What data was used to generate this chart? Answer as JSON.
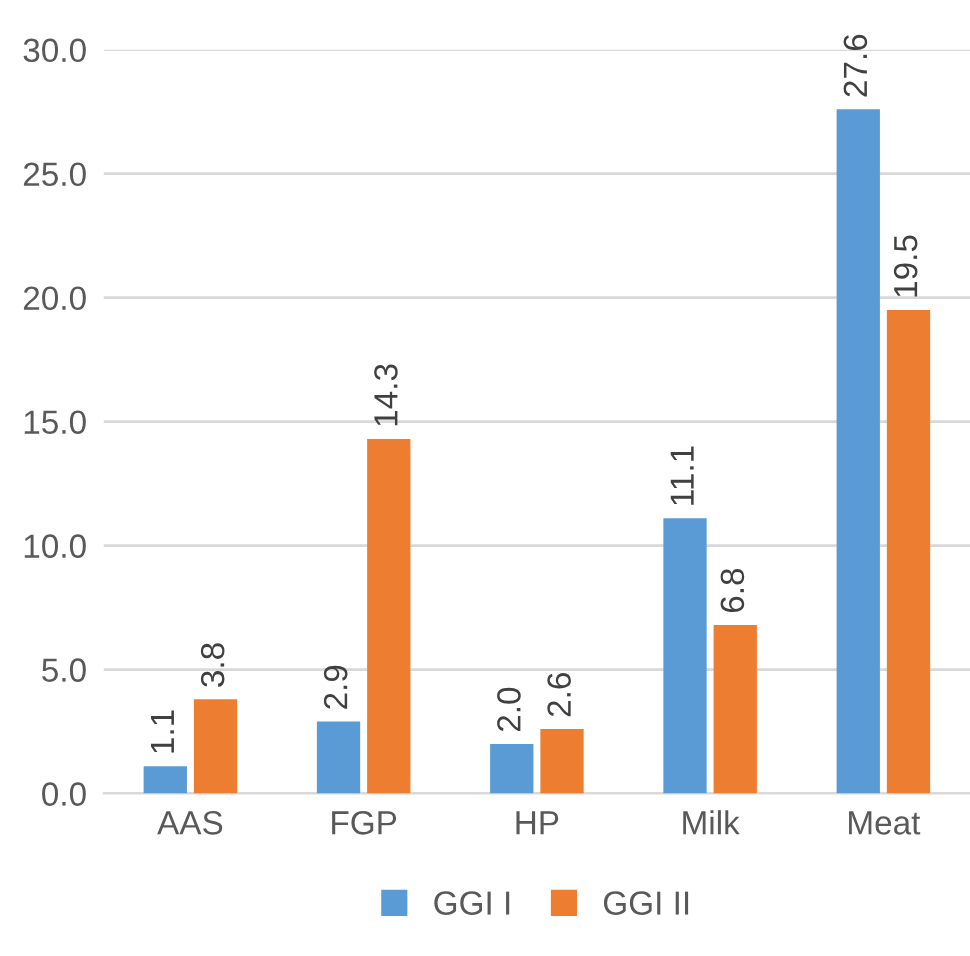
{
  "chart_data": {
    "type": "bar",
    "categories": [
      "AAS",
      "FGP",
      "HP",
      "Milk",
      "Meat"
    ],
    "series": [
      {
        "name": "GGI I",
        "color": "#5b9bd5",
        "values": [
          1.1,
          2.9,
          2.0,
          11.1,
          27.6
        ],
        "value_labels": [
          "1.1",
          "2.9",
          "2.0",
          "11.1",
          "27.6"
        ]
      },
      {
        "name": "GGI II",
        "color": "#ed7d31",
        "values": [
          3.8,
          14.3,
          2.6,
          6.8,
          19.5
        ],
        "value_labels": [
          "3.8",
          "14.3",
          "2.6",
          "6.8",
          "19.5"
        ]
      }
    ],
    "ylim": [
      0,
      30
    ],
    "yticks": [
      {
        "value": 0,
        "label": "0.0"
      },
      {
        "value": 5,
        "label": "5.0"
      },
      {
        "value": 10,
        "label": "10.0"
      },
      {
        "value": 15,
        "label": "15.0"
      },
      {
        "value": 20,
        "label": "20.0"
      },
      {
        "value": 25,
        "label": "25.0"
      },
      {
        "value": 30,
        "label": "30.0"
      }
    ],
    "grid": "y",
    "legend": "bottom"
  }
}
